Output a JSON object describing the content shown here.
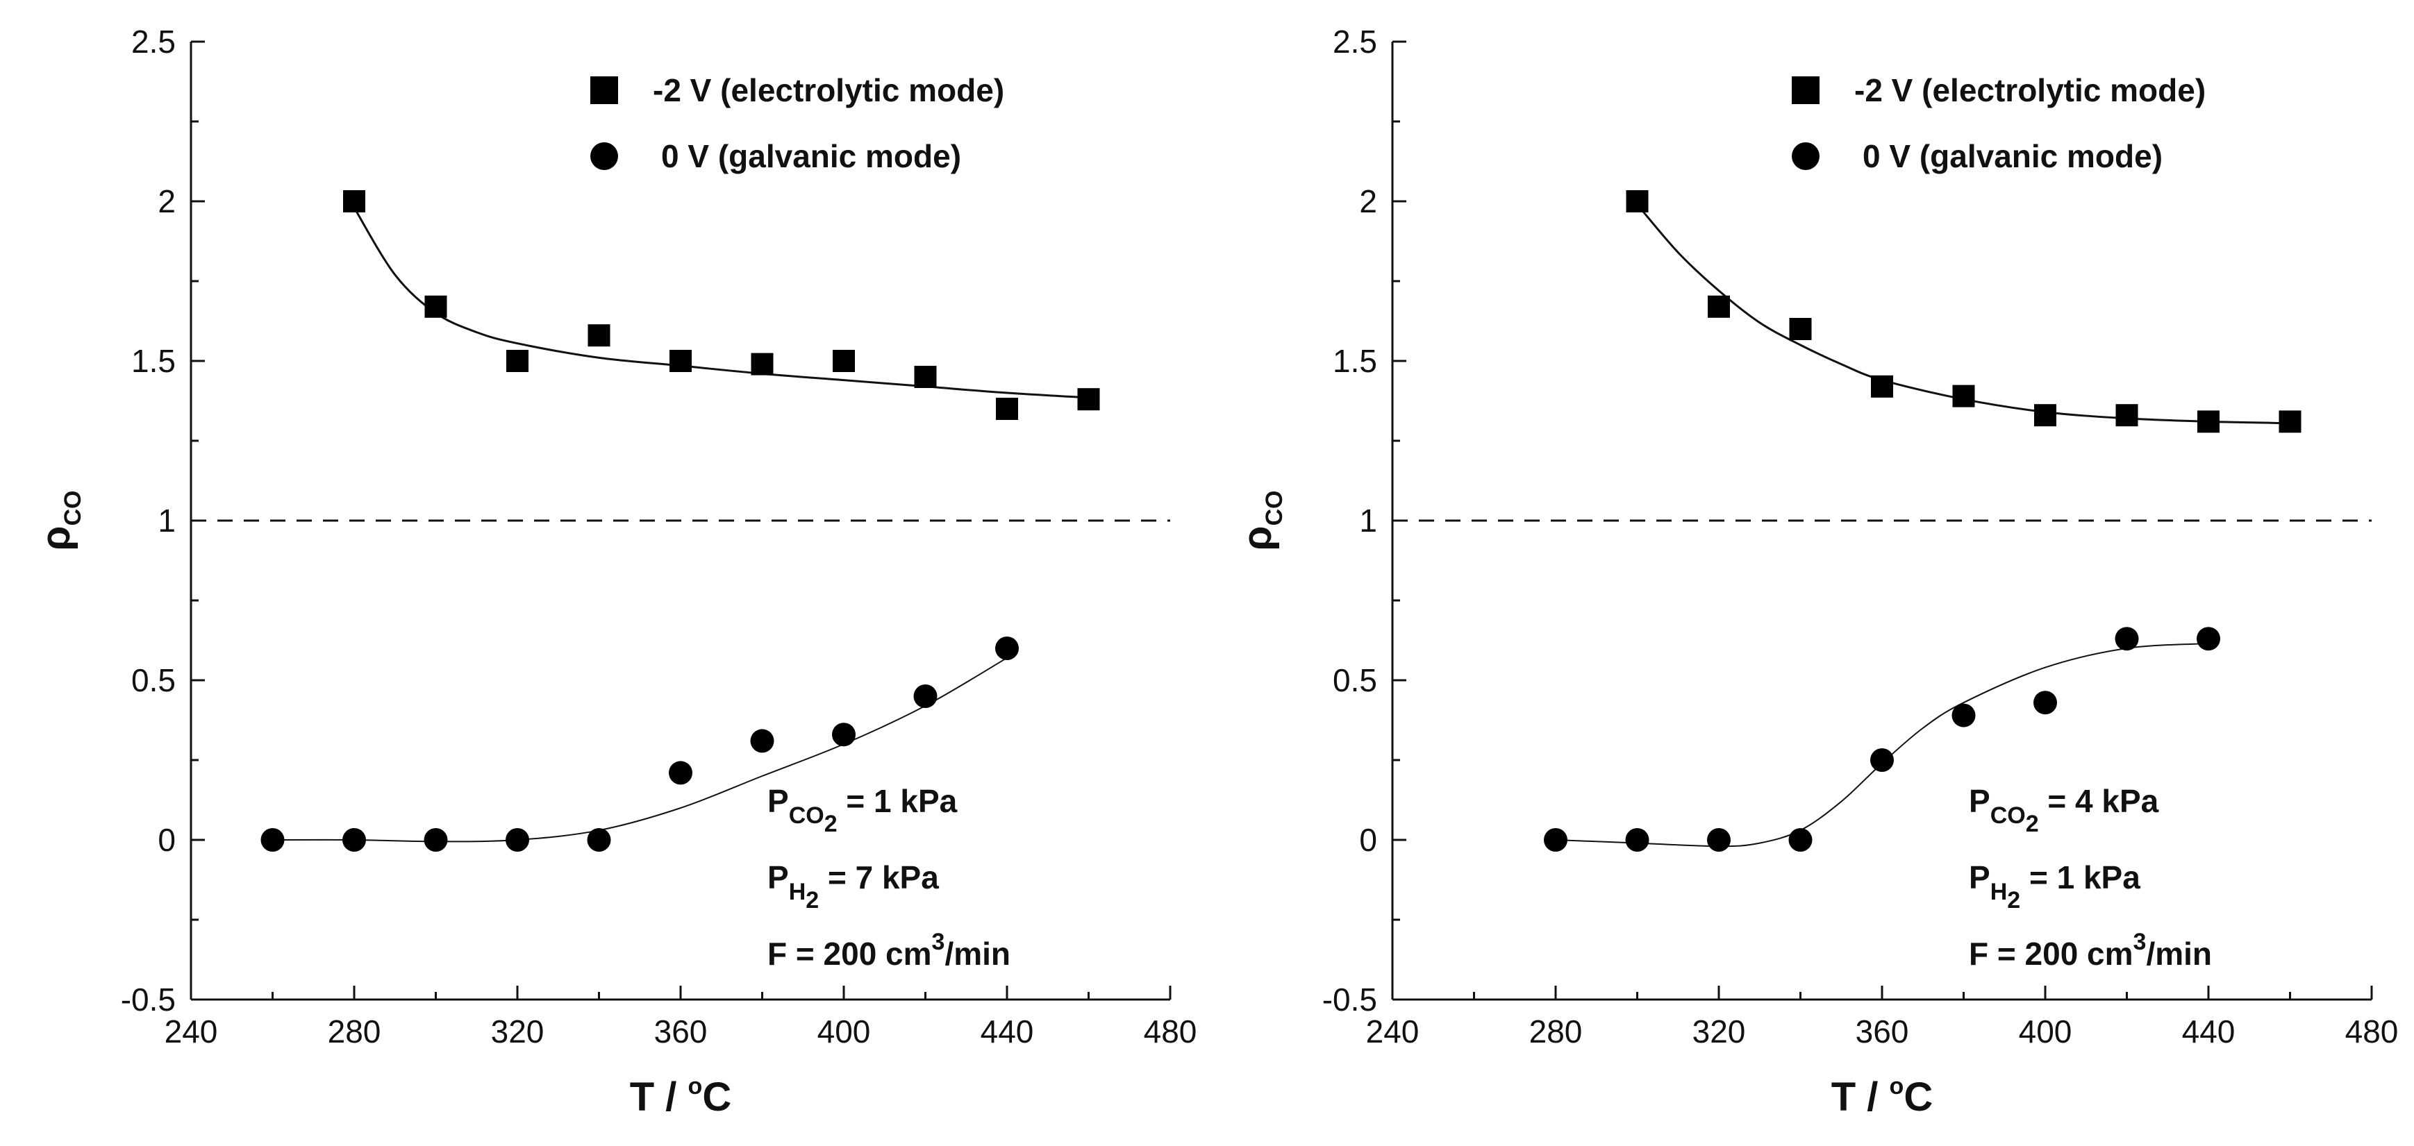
{
  "chart_data": [
    {
      "type": "scatter",
      "xlabel": "T / °C",
      "xlabel_base": "T / ",
      "xlabel_sup": "o",
      "xlabel_tail": "C",
      "ylabel": "ρCO",
      "ylabel_base": "ρ",
      "ylabel_sub": "CO",
      "xlim": [
        240,
        480
      ],
      "ylim": [
        -0.5,
        2.5
      ],
      "xticks": [
        240,
        280,
        320,
        360,
        400,
        440,
        480
      ],
      "yticks": [
        -0.5,
        0,
        0.5,
        1,
        1.5,
        2,
        2.5
      ],
      "xtick_labels": [
        "240",
        "280",
        "320",
        "360",
        "400",
        "440",
        "480"
      ],
      "ytick_labels": [
        "-0.5",
        "0",
        "0.5",
        "1",
        "1.5",
        "2",
        "2.5"
      ],
      "reference_line": {
        "y": 1,
        "style": "dashed"
      },
      "legend_position": "top-right",
      "series": [
        {
          "name": "-2 V (electrolytic mode)",
          "marker": "square",
          "x": [
            280,
            300,
            320,
            340,
            360,
            380,
            400,
            420,
            440,
            460
          ],
          "y": [
            2.0,
            1.67,
            1.5,
            1.58,
            1.5,
            1.49,
            1.5,
            1.45,
            1.35,
            1.38
          ],
          "fit": {
            "x": [
              280,
              290,
              300,
              310,
              320,
              340,
              360,
              380,
              400,
              420,
              440,
              460
            ],
            "y": [
              1.98,
              1.77,
              1.65,
              1.59,
              1.555,
              1.51,
              1.485,
              1.46,
              1.44,
              1.42,
              1.4,
              1.385
            ]
          }
        },
        {
          "name": "0 V (galvanic mode)",
          "marker": "circle",
          "x": [
            260,
            280,
            300,
            320,
            340,
            360,
            380,
            400,
            420,
            440
          ],
          "y": [
            0.0,
            0.0,
            0.0,
            0.0,
            0.0,
            0.21,
            0.31,
            0.33,
            0.45,
            0.6
          ],
          "fit": {
            "x": [
              260,
              280,
              300,
              320,
              340,
              360,
              380,
              400,
              420,
              440
            ],
            "y": [
              0.0,
              0.0,
              -0.005,
              0.0,
              0.03,
              0.1,
              0.2,
              0.3,
              0.42,
              0.57
            ]
          }
        }
      ],
      "annotations": [
        {
          "base": "P",
          "sub": "CO",
          "sub2": "2",
          "tail": " = 1 kPa"
        },
        {
          "base": "P",
          "sub": "H",
          "sub2": "2",
          "tail": " = 7 kPa"
        },
        {
          "base": "F = 200 cm",
          "sup": "3",
          "tail": "/min"
        }
      ]
    },
    {
      "type": "scatter",
      "xlabel": "T / °C",
      "xlabel_base": "T / ",
      "xlabel_sup": "o",
      "xlabel_tail": "C",
      "ylabel": "ρCO",
      "ylabel_base": "ρ",
      "ylabel_sub": "CO",
      "xlim": [
        240,
        480
      ],
      "ylim": [
        -0.5,
        2.5
      ],
      "xticks": [
        240,
        280,
        320,
        360,
        400,
        440,
        480
      ],
      "yticks": [
        -0.5,
        0,
        0.5,
        1,
        1.5,
        2,
        2.5
      ],
      "xtick_labels": [
        "240",
        "280",
        "320",
        "360",
        "400",
        "440",
        "480"
      ],
      "ytick_labels": [
        "-0.5",
        "0",
        "0.5",
        "1",
        "1.5",
        "2",
        "2.5"
      ],
      "reference_line": {
        "y": 1,
        "style": "dashed"
      },
      "legend_position": "top-right",
      "series": [
        {
          "name": "-2 V (electrolytic mode)",
          "marker": "square",
          "x": [
            300,
            320,
            340,
            360,
            380,
            400,
            420,
            440,
            460
          ],
          "y": [
            2.0,
            1.67,
            1.6,
            1.42,
            1.39,
            1.33,
            1.33,
            1.31,
            1.31
          ],
          "fit": {
            "x": [
              300,
              310,
              320,
              330,
              340,
              350,
              360,
              380,
              400,
              420,
              440,
              460
            ],
            "y": [
              1.99,
              1.84,
              1.72,
              1.62,
              1.55,
              1.49,
              1.44,
              1.38,
              1.34,
              1.32,
              1.31,
              1.305
            ]
          }
        },
        {
          "name": "0 V (galvanic mode)",
          "marker": "circle",
          "x": [
            280,
            300,
            320,
            340,
            360,
            380,
            400,
            420,
            440
          ],
          "y": [
            0.0,
            0.0,
            0.0,
            0.0,
            0.25,
            0.39,
            0.43,
            0.63,
            0.63
          ],
          "fit": {
            "x": [
              280,
              300,
              320,
              330,
              340,
              350,
              360,
              370,
              380,
              400,
              420,
              440
            ],
            "y": [
              0.0,
              -0.01,
              -0.02,
              -0.01,
              0.03,
              0.12,
              0.24,
              0.35,
              0.43,
              0.54,
              0.6,
              0.615
            ]
          }
        }
      ],
      "annotations": [
        {
          "base": "P",
          "sub": "CO",
          "sub2": "2",
          "tail": " = 4 kPa"
        },
        {
          "base": "P",
          "sub": "H",
          "sub2": "2",
          "tail": " = 1 kPa"
        },
        {
          "base": "F = 200 cm",
          "sup": "3",
          "tail": "/min"
        }
      ]
    }
  ]
}
